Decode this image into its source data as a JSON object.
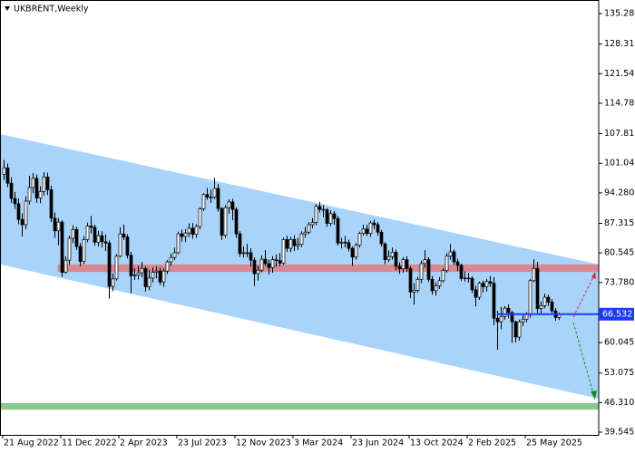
{
  "chart_data": {
    "type": "candlestick",
    "title": "UKBRENT,Weekly",
    "categories": [
      "21 Aug 2022",
      null,
      null,
      null,
      null,
      null,
      null,
      null,
      null,
      null,
      null,
      null,
      null,
      null,
      null,
      null,
      "11 Dec 2022",
      null,
      null,
      null,
      null,
      null,
      null,
      null,
      null,
      null,
      null,
      null,
      null,
      null,
      null,
      null,
      "2 Apr 2023",
      null,
      null,
      null,
      null,
      null,
      null,
      null,
      null,
      null,
      null,
      null,
      null,
      null,
      null,
      null,
      "23 Jul 2023",
      null,
      null,
      null,
      null,
      null,
      null,
      null,
      null,
      null,
      null,
      null,
      null,
      null,
      null,
      null,
      "12 Nov 2023",
      null,
      null,
      null,
      null,
      null,
      null,
      null,
      null,
      null,
      null,
      null,
      null,
      null,
      null,
      null,
      "3 Mar 2024",
      null,
      null,
      null,
      null,
      null,
      null,
      null,
      null,
      null,
      null,
      null,
      null,
      null,
      null,
      null,
      "23 Jun 2024",
      null,
      null,
      null,
      null,
      null,
      null,
      null,
      null,
      null,
      null,
      null,
      null,
      null,
      null,
      null,
      "13 Oct 2024",
      null,
      null,
      null,
      null,
      null,
      null,
      null,
      null,
      null,
      null,
      null,
      null,
      null,
      null,
      null,
      "2 Feb 2025",
      null,
      null,
      null,
      null,
      null,
      null,
      null,
      null,
      null,
      null,
      null,
      null,
      null,
      null,
      null,
      "25 May 2025",
      null,
      null,
      null,
      null,
      null,
      null,
      null,
      null,
      null
    ],
    "open": [
      98.5,
      100.0,
      96.5,
      93.0,
      91.8,
      88.2,
      87.0,
      92.4,
      95.5,
      97.6,
      93.1,
      94.6,
      97.9,
      95.0,
      88.5,
      85.6,
      87.6,
      76.1,
      78.9,
      83.9,
      85.9,
      82.0,
      78.6,
      83.6,
      86.7,
      86.4,
      83.0,
      84.5,
      83.1,
      82.8,
      72.9,
      74.6,
      79.8,
      84.9,
      84.2,
      80.0,
      75.3,
      75.5,
      76.0,
      77.0,
      72.8,
      74.8,
      76.1,
      76.4,
      73.9,
      76.4,
      78.5,
      79.5,
      80.6,
      84.9,
      84.3,
      85.1,
      86.2,
      84.8,
      86.6,
      90.6,
      93.9,
      93.3,
      93.3,
      95.3,
      90.7,
      84.6,
      90.9,
      92.2,
      90.5,
      84.9,
      80.4,
      80.6,
      80.6,
      78.9,
      75.8,
      76.6,
      79.1,
      78.1,
      77.2,
      79.0,
      78.8,
      78.2,
      83.6,
      81.6,
      83.6,
      82.2,
      82.5,
      84.9,
      85.3,
      87.0,
      87.5,
      91.2,
      90.5,
      90.4,
      87.3,
      89.5,
      88.4,
      82.8,
      83.0,
      82.9,
      81.6,
      79.6,
      82.3,
      85.0,
      86.0,
      85.0,
      87.4,
      87.0,
      85.3,
      82.6,
      79.0,
      79.7,
      80.7,
      77.5,
      76.9,
      79.0,
      77.0,
      71.6,
      72.0,
      74.5,
      78.1,
      79.0,
      74.5,
      71.9,
      73.0,
      74.2,
      76.5,
      79.8,
      80.8,
      78.5,
      77.7,
      74.7,
      74.8,
      74.7,
      72.1,
      70.4,
      73.6,
      72.8,
      74.0,
      73.6,
      65.6,
      64.8,
      66.0,
      67.9,
      66.9,
      64.8,
      61.3,
      64.8,
      65.4,
      66.5,
      74.2,
      77.0,
      67.8,
      68.5,
      70.4,
      69.3,
      67.3,
      65.8
    ],
    "high": [
      101.8,
      101.0,
      97.8,
      94.5,
      93.0,
      89.6,
      93.5,
      98.2,
      98.8,
      98.5,
      95.8,
      99.0,
      98.9,
      95.9,
      89.8,
      88.5,
      88.0,
      79.8,
      84.5,
      86.9,
      86.5,
      82.8,
      84.4,
      87.5,
      89.0,
      87.0,
      85.6,
      85.5,
      84.8,
      83.4,
      75.9,
      80.3,
      86.4,
      87.0,
      84.8,
      80.8,
      77.0,
      77.6,
      78.5,
      77.5,
      76.7,
      77.3,
      77.5,
      77.2,
      77.0,
      78.9,
      80.4,
      81.8,
      85.4,
      85.9,
      86.0,
      87.3,
      87.4,
      87.1,
      91.0,
      94.2,
      95.4,
      95.0,
      97.7,
      96.3,
      91.0,
      91.5,
      92.8,
      92.9,
      91.0,
      85.5,
      82.0,
      82.6,
      81.6,
      79.5,
      77.6,
      80.0,
      81.2,
      79.0,
      79.8,
      80.2,
      80.5,
      84.0,
      84.5,
      84.2,
      84.6,
      84.0,
      85.5,
      86.5,
      87.6,
      88.5,
      91.7,
      92.2,
      91.5,
      90.8,
      90.3,
      90.1,
      89.0,
      84.0,
      84.4,
      83.6,
      82.0,
      82.8,
      85.4,
      87.0,
      87.0,
      87.9,
      88.2,
      87.6,
      85.8,
      83.0,
      81.1,
      81.8,
      81.3,
      78.4,
      79.6,
      79.8,
      77.5,
      73.6,
      75.1,
      78.8,
      81.2,
      79.6,
      75.3,
      73.8,
      75.0,
      77.0,
      80.5,
      82.6,
      81.3,
      79.2,
      78.1,
      76.3,
      76.0,
      75.2,
      73.0,
      74.0,
      74.2,
      74.6,
      75.3,
      75.0,
      67.3,
      68.2,
      68.4,
      68.8,
      67.3,
      65.0,
      65.3,
      66.3,
      67.0,
      74.6,
      79.1,
      78.5,
      69.4,
      71.2,
      71.0,
      70.0,
      67.9,
      66.9
    ],
    "low": [
      97.2,
      95.6,
      92.0,
      90.6,
      87.1,
      84.3,
      86.0,
      91.6,
      94.2,
      92.0,
      91.9,
      93.7,
      93.8,
      87.6,
      84.0,
      82.3,
      75.1,
      75.8,
      77.8,
      82.8,
      81.2,
      77.5,
      78.0,
      83.0,
      85.0,
      82.2,
      82.0,
      81.8,
      81.0,
      70.1,
      71.8,
      74.2,
      79.5,
      83.5,
      79.3,
      71.3,
      74.4,
      74.5,
      75.0,
      71.7,
      72.0,
      73.8,
      74.7,
      73.2,
      72.8,
      75.7,
      77.6,
      78.9,
      80.3,
      83.1,
      83.0,
      84.2,
      83.8,
      84.0,
      86.0,
      90.1,
      92.7,
      92.0,
      92.8,
      90.0,
      83.5,
      84.0,
      89.5,
      88.0,
      84.0,
      79.6,
      79.5,
      79.6,
      77.5,
      73.0,
      74.2,
      76.1,
      77.6,
      75.6,
      76.0,
      77.4,
      77.5,
      77.8,
      80.8,
      80.7,
      81.0,
      81.2,
      81.9,
      84.0,
      84.8,
      86.2,
      86.9,
      89.8,
      88.7,
      86.5,
      86.7,
      87.0,
      82.2,
      81.6,
      81.8,
      80.9,
      77.6,
      79.0,
      81.8,
      84.5,
      84.4,
      84.2,
      86.0,
      84.5,
      82.0,
      78.0,
      78.4,
      79.0,
      76.6,
      75.8,
      76.0,
      76.2,
      70.2,
      68.7,
      71.4,
      73.6,
      77.2,
      73.9,
      71.0,
      70.8,
      72.3,
      73.8,
      76.0,
      79.0,
      77.8,
      76.4,
      74.1,
      74.0,
      73.8,
      71.4,
      68.3,
      69.8,
      71.5,
      71.7,
      72.8,
      64.0,
      58.4,
      63.1,
      65.3,
      65.6,
      60.0,
      60.1,
      60.5,
      63.8,
      64.7,
      65.8,
      73.8,
      66.8,
      66.5,
      67.9,
      68.4,
      66.8,
      65.0,
      65.2
    ],
    "close": [
      100.0,
      96.5,
      93.0,
      91.8,
      88.2,
      87.0,
      92.4,
      95.5,
      97.6,
      93.1,
      94.6,
      97.9,
      95.0,
      88.5,
      85.6,
      87.6,
      76.1,
      78.9,
      83.9,
      85.9,
      82.0,
      78.6,
      83.6,
      86.7,
      86.4,
      83.0,
      84.5,
      83.1,
      82.8,
      72.9,
      74.6,
      79.8,
      84.9,
      84.2,
      80.0,
      75.3,
      75.5,
      76.0,
      77.0,
      72.8,
      74.8,
      76.1,
      76.4,
      73.9,
      76.4,
      78.5,
      79.5,
      80.6,
      84.9,
      84.3,
      85.1,
      86.2,
      84.8,
      86.6,
      90.6,
      93.9,
      93.3,
      93.3,
      95.3,
      90.7,
      84.6,
      90.9,
      92.2,
      90.5,
      84.9,
      80.4,
      80.6,
      80.6,
      78.9,
      75.8,
      76.6,
      79.1,
      78.1,
      77.2,
      79.0,
      78.8,
      78.2,
      83.6,
      81.6,
      83.6,
      82.2,
      82.5,
      84.9,
      85.3,
      87.0,
      87.5,
      91.2,
      90.5,
      90.4,
      87.3,
      89.5,
      88.4,
      82.8,
      83.0,
      82.9,
      81.6,
      79.6,
      82.3,
      85.0,
      86.0,
      85.0,
      87.4,
      87.0,
      85.3,
      82.6,
      79.0,
      79.7,
      80.7,
      77.5,
      76.9,
      79.0,
      77.0,
      71.6,
      72.0,
      74.5,
      78.1,
      79.0,
      74.5,
      71.9,
      73.0,
      74.2,
      76.5,
      79.8,
      80.8,
      78.5,
      77.7,
      74.7,
      74.8,
      74.7,
      72.1,
      70.4,
      73.6,
      72.8,
      74.0,
      73.6,
      65.6,
      64.8,
      66.0,
      67.9,
      66.9,
      64.8,
      61.3,
      64.8,
      65.4,
      66.5,
      74.2,
      77.0,
      67.8,
      68.5,
      70.4,
      69.3,
      67.3,
      65.8,
      66.5
    ],
    "up_color": "#ffffff",
    "down_color": "#000000",
    "wick_color": "#000000",
    "last_price": {
      "value": 66.532,
      "color": "#1e3cff"
    },
    "channel": {
      "x": [
        -1,
        164
      ],
      "upper": [
        107.7,
        77.9
      ],
      "lower": [
        77.9,
        47.2
      ],
      "color": "#a8d4fb"
    },
    "zones": [
      {
        "x": [
          14.75,
          164
        ],
        "range": [
          76.2,
          77.9
        ],
        "color": "#e07a80"
      },
      {
        "x": [
          -1,
          164
        ],
        "range": [
          44.7,
          46.2
        ],
        "color": "#78bd7c"
      }
    ],
    "ylim": [
      38.93,
      138.39
    ],
    "yticks": [
      {
        "value": 135.28,
        "label": "135.280"
      },
      {
        "value": 128.31,
        "label": "128.310"
      },
      121.545,
      {
        "value": 114.78,
        "label": "114.780"
      },
      107.815,
      101.045,
      {
        "value": 94.28,
        "label": "94.280"
      },
      87.315,
      80.545,
      {
        "value": 73.78,
        "label": "73.780"
      },
      60.045,
      53.075,
      {
        "value": 46.31,
        "label": "46.310"
      },
      39.545
    ]
  }
}
